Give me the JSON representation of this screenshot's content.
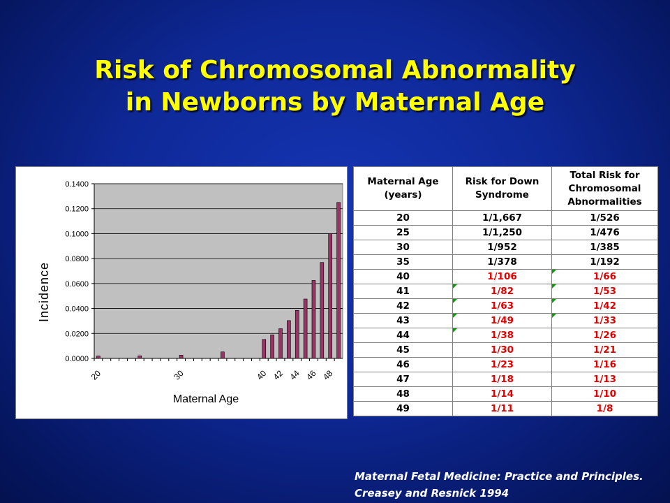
{
  "slide": {
    "title_line1": "Risk of Chromosomal Abnormality",
    "title_line2": "in Newborns by Maternal Age",
    "citation_line1": "Maternal Fetal Medicine: Practice and Principles.",
    "citation_line2": "Creasey and Resnick 1994"
  },
  "colors": {
    "title": "#ffff00",
    "bar": "#993366",
    "plot_area": "#c0c0c0",
    "highlight_text": "#e00000",
    "cell_marker": "#00a000"
  },
  "chart_data": {
    "type": "bar",
    "title": "",
    "xlabel": "Maternal Age",
    "ylabel": "Incidence",
    "ylim": [
      0,
      0.14
    ],
    "yticks": [
      "0.0000",
      "0.0200",
      "0.0400",
      "0.0600",
      "0.0800",
      "0.1000",
      "0.1200",
      "0.1400"
    ],
    "xtick_labels": [
      "20",
      "30",
      "40",
      "42",
      "44",
      "46",
      "48"
    ],
    "grid": "horizontal",
    "legend": "none",
    "categories": [
      "20",
      "21",
      "22",
      "23",
      "24",
      "25",
      "26",
      "27",
      "28",
      "29",
      "30",
      "31",
      "32",
      "33",
      "34",
      "35",
      "36",
      "37",
      "38",
      "39",
      "40",
      "41",
      "42",
      "43",
      "44",
      "45",
      "46",
      "47",
      "48",
      "49"
    ],
    "values": [
      0.0019,
      0,
      0,
      0,
      0,
      0.0021,
      0,
      0,
      0,
      0,
      0.0026,
      0,
      0,
      0,
      0,
      0.0052,
      0,
      0,
      0,
      0,
      0.0152,
      0.0189,
      0.0238,
      0.0303,
      0.0385,
      0.0476,
      0.0625,
      0.0769,
      0.1,
      0.125
    ]
  },
  "table": {
    "headers": [
      [
        "Maternal Age",
        "(years)"
      ],
      [
        "Risk for Down",
        "Syndrome"
      ],
      [
        "Total Risk for",
        "Chromosomal",
        "Abnormalities"
      ]
    ],
    "rows": [
      {
        "age": "20",
        "down": "1/1,667",
        "total": "1/526"
      },
      {
        "age": "25",
        "down": "1/1,250",
        "total": "1/476"
      },
      {
        "age": "30",
        "down": "1/952",
        "total": "1/385"
      },
      {
        "age": "35",
        "down": "1/378",
        "total": "1/192"
      },
      {
        "age": "40",
        "down": "1/106",
        "total": "1/66"
      },
      {
        "age": "41",
        "down": "1/82",
        "total": "1/53"
      },
      {
        "age": "42",
        "down": "1/63",
        "total": "1/42"
      },
      {
        "age": "43",
        "down": "1/49",
        "total": "1/33"
      },
      {
        "age": "44",
        "down": "1/38",
        "total": "1/26"
      },
      {
        "age": "45",
        "down": "1/30",
        "total": "1/21"
      },
      {
        "age": "46",
        "down": "1/23",
        "total": "1/16"
      },
      {
        "age": "47",
        "down": "1/18",
        "total": "1/13"
      },
      {
        "age": "48",
        "down": "1/14",
        "total": "1/10"
      },
      {
        "age": "49",
        "down": "1/11",
        "total": "1/8"
      }
    ]
  }
}
